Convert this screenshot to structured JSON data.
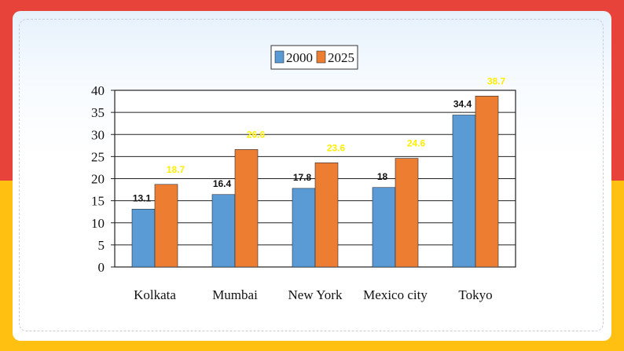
{
  "chart_data": {
    "type": "bar",
    "title": "",
    "xlabel": "",
    "ylabel": "",
    "categories": [
      "Kolkata",
      "Mumbai",
      "New York",
      "Mexico city",
      "Tokyo"
    ],
    "series": [
      {
        "name": "2000",
        "values": [
          13.1,
          16.4,
          17.8,
          18,
          34.4
        ],
        "color": "#5b9bd5",
        "label_color": "#111111"
      },
      {
        "name": "2025",
        "values": [
          18.7,
          26.6,
          23.6,
          24.6,
          38.7
        ],
        "color": "#ed7d31",
        "label_color": "#ffee00"
      }
    ],
    "ylim": [
      0,
      40
    ],
    "yticks": [
      0,
      5,
      10,
      15,
      20,
      25,
      30,
      35,
      40
    ],
    "grid": true,
    "legend_position": "top-center"
  }
}
